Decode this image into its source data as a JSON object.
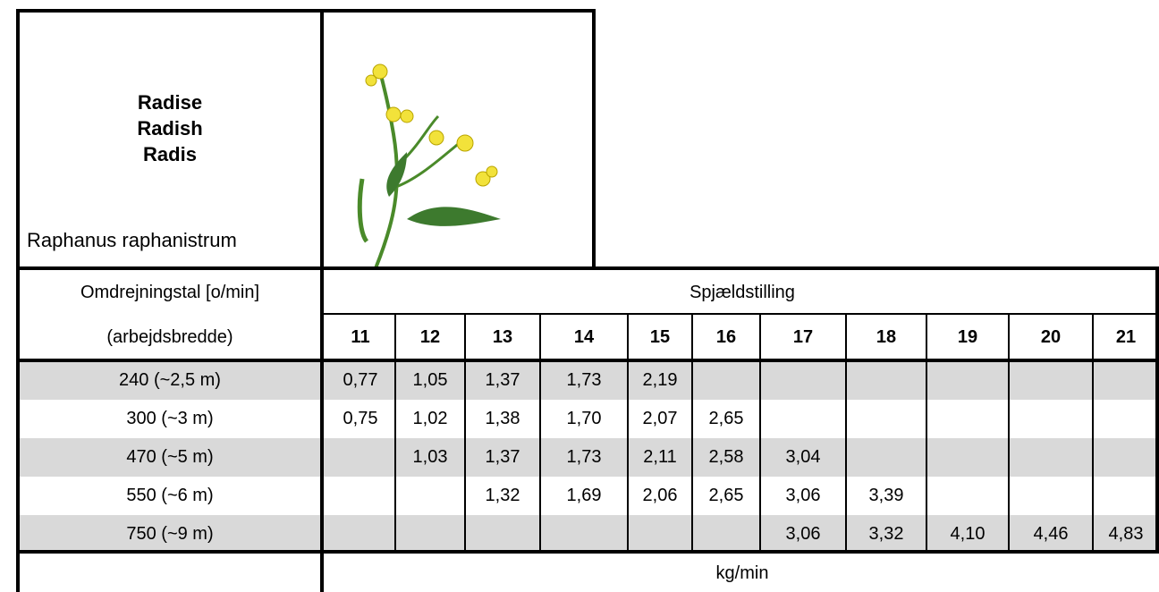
{
  "species": {
    "names": [
      "Radise",
      "Radish",
      "Radis"
    ],
    "latin": "Raphanus raphanistrum"
  },
  "table": {
    "row_header": "Omdrejningstal [o/min]",
    "row_subheader": "(arbejdsbredde)",
    "column_header": "Spjældstilling",
    "columns": [
      11,
      12,
      13,
      14,
      15,
      16,
      17,
      18,
      19,
      20,
      21
    ],
    "rows": [
      {
        "label": "240 (~2,5 m)",
        "values": [
          "0,77",
          "1,05",
          "1,37",
          "1,73",
          "2,19",
          null,
          null,
          null,
          null,
          null,
          null
        ]
      },
      {
        "label": "300 (~3 m)",
        "values": [
          "0,75",
          "1,02",
          "1,38",
          "1,70",
          "2,07",
          "2,65",
          null,
          null,
          null,
          null,
          null
        ]
      },
      {
        "label": "470 (~5 m)",
        "values": [
          null,
          "1,03",
          "1,37",
          "1,73",
          "2,11",
          "2,58",
          "3,04",
          null,
          null,
          null,
          null
        ]
      },
      {
        "label": "550 (~6 m)",
        "values": [
          null,
          null,
          "1,32",
          "1,69",
          "2,06",
          "2,65",
          "3,06",
          "3,39",
          null,
          null,
          null
        ]
      },
      {
        "label": "750 (~9 m)",
        "values": [
          null,
          null,
          null,
          null,
          null,
          null,
          "3,06",
          "3,32",
          "4,10",
          "4,46",
          "4,83"
        ]
      }
    ],
    "unit": "kg/min"
  }
}
